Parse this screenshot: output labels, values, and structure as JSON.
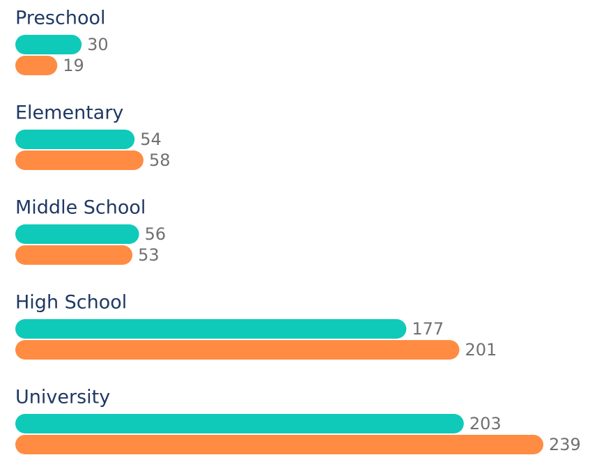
{
  "chart_data": {
    "type": "bar",
    "orientation": "horizontal",
    "categories": [
      "Preschool",
      "Elementary",
      "Middle School",
      "High School",
      "University"
    ],
    "series": [
      {
        "color": "#0fcab8",
        "values": [
          30,
          54,
          56,
          177,
          203
        ]
      },
      {
        "color": "#ff8c42",
        "values": [
          19,
          58,
          53,
          201,
          239
        ]
      }
    ]
  }
}
